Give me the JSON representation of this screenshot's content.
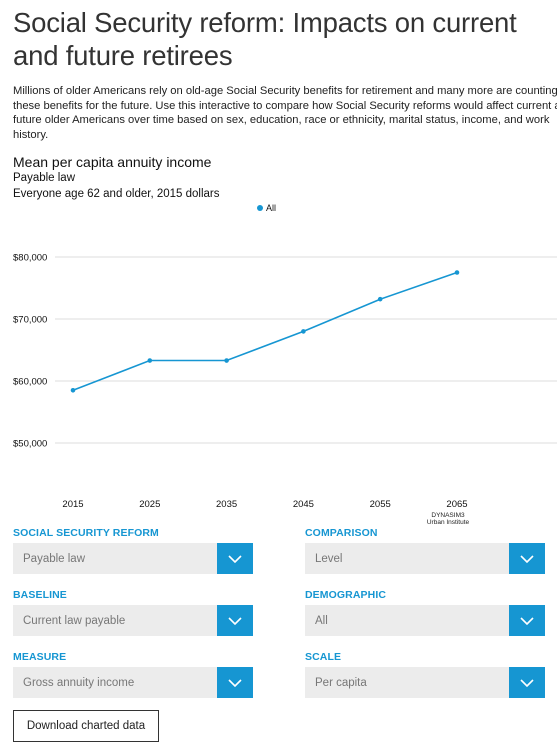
{
  "header": {
    "title_line1": "Social Security reform: Impacts on current",
    "title_line2": "and future retirees"
  },
  "intro": {
    "line1": "Millions of older Americans rely on old-age Social Security benefits for retirement and many more are counting on",
    "line2": "these benefits for the future. Use this interactive to compare how Social Security reforms would affect current and",
    "line3": "future older Americans over time based on sex, education, race or ethnicity, marital status, income, and work",
    "line4": "history."
  },
  "chart_header": {
    "title": "Mean per capita annuity income",
    "subtitle1": "Payable law",
    "subtitle2": "Everyone age 62 and older, 2015 dollars"
  },
  "chart_data": {
    "type": "line",
    "x": [
      2015,
      2025,
      2035,
      2045,
      2055,
      2065
    ],
    "series": [
      {
        "name": "All",
        "values": [
          58500,
          63300,
          63300,
          68000,
          73200,
          77500
        ],
        "color": "#1696d2"
      }
    ],
    "yticks": [
      50000,
      60000,
      70000,
      80000
    ],
    "ytick_labels": [
      "$50,000",
      "$60,000",
      "$70,000",
      "$80,000"
    ],
    "xtick_labels": [
      "2015",
      "2025",
      "2035",
      "2045",
      "2055",
      "2065"
    ],
    "ylim": [
      50000,
      80000
    ],
    "grid": true,
    "legend": "top-center"
  },
  "source": {
    "line1": "DYNASIM3",
    "line2": "Urban Institute"
  },
  "controls": {
    "reform": {
      "label": "SOCIAL SECURITY REFORM",
      "value": "Payable law"
    },
    "comparison": {
      "label": "COMPARISON",
      "value": "Level"
    },
    "baseline": {
      "label": "BASELINE",
      "value": "Current law payable"
    },
    "demographic": {
      "label": "DEMOGRAPHIC",
      "value": "All"
    },
    "measure": {
      "label": "MEASURE",
      "value": "Gross annuity income"
    },
    "scale": {
      "label": "SCALE",
      "value": "Per capita"
    }
  },
  "download": {
    "label": "Download charted data"
  },
  "icons": {
    "dropdown": "chevron-down-icon"
  },
  "colors": {
    "accent": "#1696d2",
    "control_bg": "#ececec"
  }
}
